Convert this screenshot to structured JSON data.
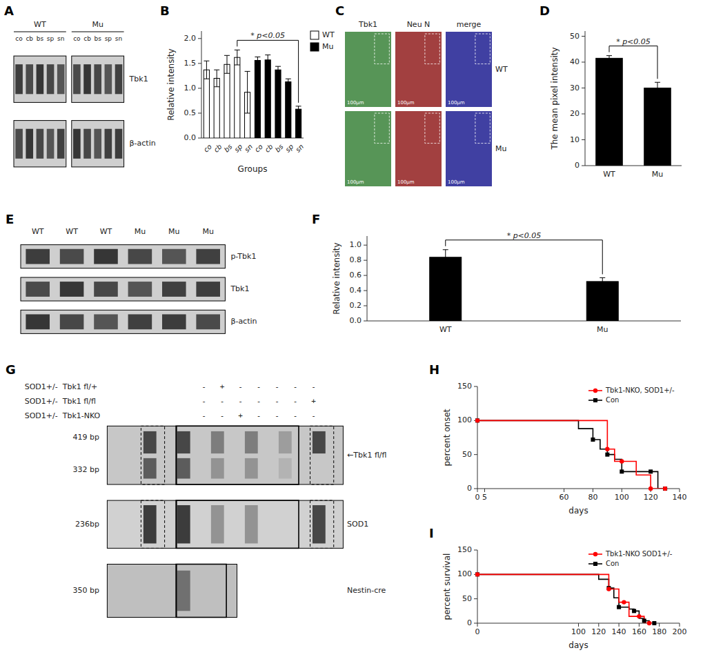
{
  "chart_data": [
    {
      "type": "blot",
      "title": "A",
      "series": [
        {
          "name": "WT"
        },
        {
          "name": "Mu"
        }
      ],
      "categories": [
        "co",
        "cb",
        "bs",
        "sp",
        "sn"
      ],
      "annotations": [
        "Tbk1",
        "β-actin"
      ]
    },
    {
      "type": "bar",
      "title": "B",
      "categories": [
        "co",
        "cb",
        "bs",
        "sp",
        "sn",
        "co",
        "cb",
        "bs",
        "sp",
        "sn"
      ],
      "series": [
        {
          "name": "WT",
          "color": "#ffffff",
          "values": [
            1.37,
            1.2,
            1.48,
            1.62,
            0.92,
            null,
            null,
            null,
            null,
            null
          ],
          "errors": [
            0.18,
            0.17,
            0.18,
            0.15,
            0.42,
            null,
            null,
            null,
            null,
            null
          ]
        },
        {
          "name": "Mu",
          "color": "#000000",
          "values": [
            null,
            null,
            null,
            null,
            null,
            1.56,
            1.57,
            1.37,
            1.13,
            0.58
          ],
          "errors": [
            null,
            null,
            null,
            null,
            null,
            0.07,
            0.1,
            0.07,
            0.06,
            0.06
          ]
        }
      ],
      "xlabel": "Groups",
      "ylabel": "Relative intensity",
      "ylim": [
        0,
        2.15
      ],
      "yticks": [
        {
          "value": 0,
          "label": "0.0"
        },
        0.5,
        {
          "value": 1,
          "label": "1.0"
        },
        1.5,
        {
          "value": 2,
          "label": "2.0"
        }
      ],
      "annotations": [
        {
          "text": "* p<0.05",
          "between": [
            3,
            9
          ]
        }
      ],
      "legend": "upper right"
    },
    {
      "type": "image",
      "title": "C",
      "categories": [
        "Tbk1",
        "Neu N",
        "merge"
      ],
      "colors": [
        "#2d7a2d",
        "#8b1010",
        "#10108b"
      ],
      "annotations": [
        "100μm",
        "WT",
        "Mu"
      ]
    },
    {
      "type": "bar",
      "title": "D",
      "categories": [
        "WT",
        "Mu"
      ],
      "values": [
        41.5,
        30.0
      ],
      "errors": [
        1.0,
        2.2
      ],
      "color": "#000000",
      "ylabel": "The mean pixel intensity",
      "ylim": [
        0,
        52
      ],
      "yticks": [
        0,
        10,
        20,
        30,
        40,
        50
      ],
      "annotations": [
        {
          "text": "* p<0.05",
          "between": [
            0,
            1
          ]
        }
      ]
    },
    {
      "type": "blot",
      "title": "E",
      "categories": [
        "WT",
        "WT",
        "WT",
        "Mu",
        "Mu",
        "Mu"
      ],
      "annotations": [
        "p-Tbk1",
        "Tbk1",
        "β-actin"
      ]
    },
    {
      "type": "bar",
      "title": "F",
      "categories": [
        "WT",
        "Mu"
      ],
      "values": [
        0.84,
        0.52
      ],
      "errors": [
        0.1,
        0.05
      ],
      "color": "#000000",
      "ylabel": "Relative intensity",
      "ylim": [
        0,
        1.12
      ],
      "yticks": [
        {
          "value": 0,
          "label": "0.0"
        },
        0.2,
        0.4,
        0.6,
        0.8,
        {
          "value": 1,
          "label": "1.0"
        }
      ],
      "annotations": [
        {
          "text": "* p<0.05",
          "between": [
            0,
            1
          ]
        }
      ]
    },
    {
      "type": "gel",
      "title": "G",
      "annotations": [
        "SOD1+/-  Tbk1 fl/+",
        "-   +   -   -   -   -   -",
        "SOD1+/-  Tbk1 fl/fl",
        "-   -   -   -   -   -   +",
        "SOD1+/-  Tbk1-NKO",
        "-   -   +   -   -   -   -",
        "419 bp",
        "332 bp",
        "←Tbk1 fl/fl",
        "236bp",
        "SOD1",
        "350 bp",
        "Nestin-cre"
      ]
    },
    {
      "type": "step",
      "title": "H",
      "series": [
        {
          "name": "Con",
          "color": "#000000",
          "marker": "square",
          "x": [
            0,
            70,
            80,
            85,
            90,
            95,
            100,
            110,
            120,
            125,
            130
          ],
          "values": [
            100,
            88,
            72,
            58,
            50,
            43,
            25,
            25,
            25,
            0,
            0
          ]
        },
        {
          "name": "Tbk1-NKO, SOD1+/-",
          "color": "#ff0000",
          "marker": "circle",
          "x": [
            0,
            80,
            90,
            95,
            100,
            110,
            120,
            125,
            130
          ],
          "values": [
            100,
            100,
            58,
            40,
            40,
            20,
            0,
            0,
            0
          ]
        }
      ],
      "xlabel": "days",
      "ylabel": "percent onset",
      "xlim": [
        0,
        140
      ],
      "ylim": [
        0,
        150
      ],
      "xticks": [
        0,
        5,
        60,
        80,
        100,
        120,
        140
      ],
      "yticks": [
        0,
        50,
        100,
        150
      ],
      "legend": "upper right"
    },
    {
      "type": "step",
      "title": "I",
      "series": [
        {
          "name": "Con",
          "color": "#000000",
          "marker": "square",
          "x": [
            0,
            120,
            130,
            135,
            140,
            150,
            155,
            160,
            165,
            170,
            175
          ],
          "values": [
            100,
            90,
            72,
            52,
            33,
            29,
            25,
            10,
            5,
            0,
            0
          ]
        },
        {
          "name": "Tbk1-NKO SOD1+/-",
          "color": "#ff0000",
          "marker": "circle",
          "x": [
            0,
            120,
            130,
            140,
            145,
            150,
            160,
            165,
            170,
            175
          ],
          "values": [
            100,
            100,
            70,
            43,
            43,
            14,
            14,
            0,
            0,
            0
          ]
        }
      ],
      "xlabel": "days",
      "ylabel": "percent survival",
      "xlim": [
        0,
        200
      ],
      "ylim": [
        0,
        150
      ],
      "xticks": [
        0,
        100,
        120,
        140,
        160,
        180,
        200
      ],
      "yticks": [
        0,
        50,
        100,
        150
      ],
      "legend": "upper right"
    }
  ]
}
